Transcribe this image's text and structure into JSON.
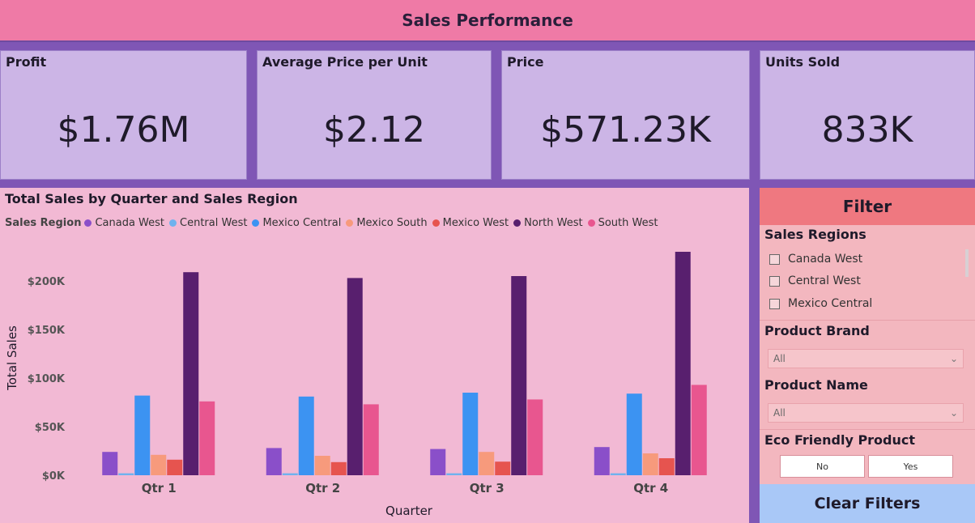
{
  "header": {
    "title": "Sales Performance"
  },
  "kpis": [
    {
      "title": "Profit",
      "value": "$1.76M"
    },
    {
      "title": "Average Price per Unit",
      "value": "$2.12"
    },
    {
      "title": "Price",
      "value": "$571.23K"
    },
    {
      "title": "Units Sold",
      "value": "833K"
    }
  ],
  "chart": {
    "title": "Total Sales by Quarter and Sales Region",
    "legend_title": "Sales Region"
  },
  "chart_data": {
    "type": "bar",
    "title": "Total Sales by Quarter and Sales Region",
    "xlabel": "Quarter",
    "ylabel": "Total Sales",
    "categories": [
      "Qtr 1",
      "Qtr 2",
      "Qtr 3",
      "Qtr 4"
    ],
    "yticks": [
      "$0K",
      "$50K",
      "$100K",
      "$150K",
      "$200K"
    ],
    "ylim": [
      0,
      230000
    ],
    "legend_position": "top-left",
    "series": [
      {
        "name": "Canada West",
        "color": "#8a4fc9",
        "values": [
          24000,
          28000,
          27000,
          29000
        ]
      },
      {
        "name": "Central West",
        "color": "#6fb2ee",
        "values": [
          2000,
          2000,
          2000,
          2000
        ]
      },
      {
        "name": "Mexico Central",
        "color": "#3c93f2",
        "values": [
          82000,
          81000,
          85000,
          84000
        ]
      },
      {
        "name": "Mexico South",
        "color": "#f79a7c",
        "values": [
          21000,
          20000,
          24000,
          22500
        ]
      },
      {
        "name": "Mexico West",
        "color": "#e6544f",
        "values": [
          16000,
          13500,
          14000,
          17500
        ]
      },
      {
        "name": "North West",
        "color": "#581f6e",
        "values": [
          209000,
          203000,
          205000,
          230000
        ]
      },
      {
        "name": "South West",
        "color": "#e8568f",
        "values": [
          76000,
          73000,
          78000,
          93000
        ]
      }
    ]
  },
  "filter": {
    "title": "Filter",
    "regions_label": "Sales Regions",
    "regions": [
      "Canada West",
      "Central West",
      "Mexico Central"
    ],
    "brand_label": "Product Brand",
    "brand_value": "All",
    "name_label": "Product Name",
    "name_value": "All",
    "eco_label": "Eco Friendly Product",
    "eco_no": "No",
    "eco_yes": "Yes",
    "clear": "Clear Filters"
  },
  "icons": {
    "dropdown": "chevron-down-icon",
    "checkbox": "checkbox-icon"
  }
}
